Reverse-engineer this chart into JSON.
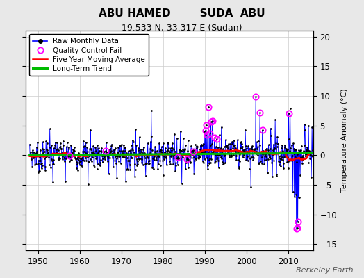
{
  "title": "ABU HAMED        SUDA  ABU",
  "subtitle": "19.533 N, 33.317 E (Sudan)",
  "ylabel": "Temperature Anomaly (°C)",
  "watermark": "Berkeley Earth",
  "xlim": [
    1947,
    2016
  ],
  "ylim": [
    -16,
    21
  ],
  "yticks": [
    -15,
    -10,
    -5,
    0,
    5,
    10,
    15,
    20
  ],
  "xticks": [
    1950,
    1960,
    1970,
    1980,
    1990,
    2000,
    2010
  ],
  "bg_color": "#e8e8e8",
  "plot_bg_color": "#ffffff",
  "line_color": "#0000ff",
  "ma_color": "#ff0000",
  "trend_color": "#00bb00",
  "qc_color": "#ff00ff",
  "title_fontsize": 11,
  "subtitle_fontsize": 9,
  "label_fontsize": 8,
  "tick_fontsize": 8.5
}
